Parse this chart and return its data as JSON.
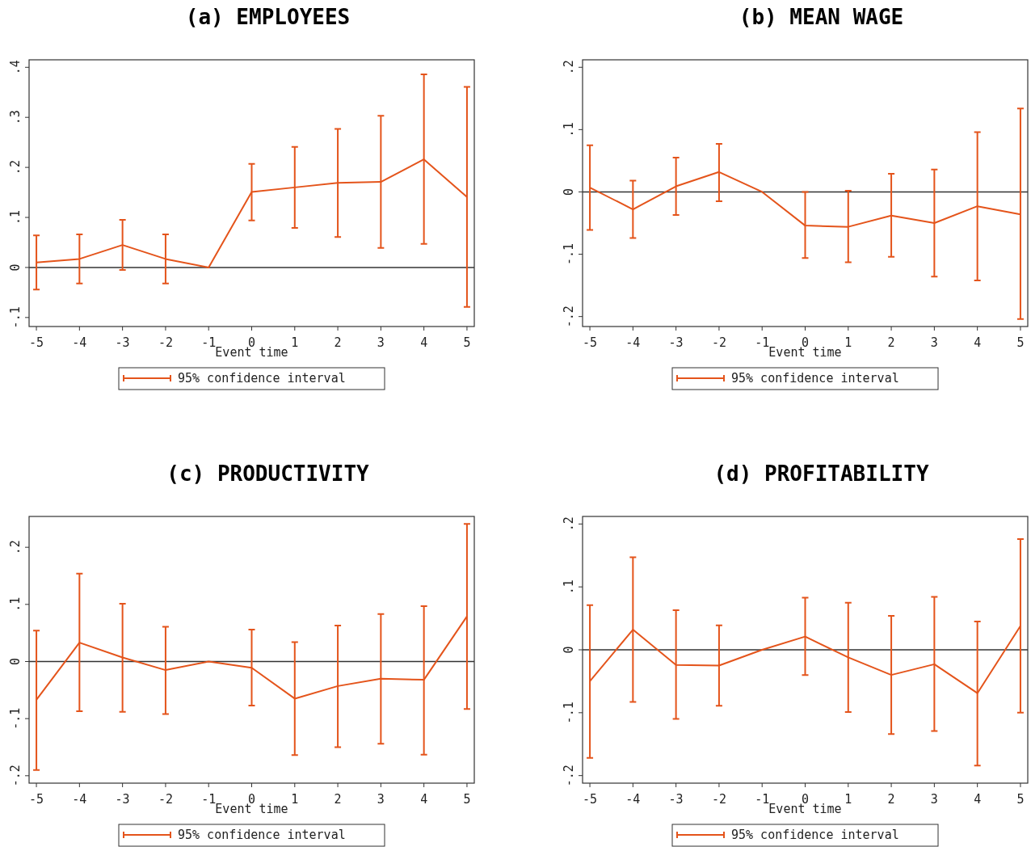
{
  "chart_data": [
    {
      "type": "line",
      "title": "(a) EMPLOYEES",
      "xlabel": "Event time",
      "x": [
        -5,
        -4,
        -3,
        -2,
        -1,
        0,
        1,
        2,
        3,
        4,
        5
      ],
      "xlim": [
        -5.17,
        5.17
      ],
      "xticks": [
        -5,
        -4,
        -3,
        -2,
        -1,
        0,
        1,
        2,
        3,
        4,
        5
      ],
      "ylim": [
        -0.118,
        0.415
      ],
      "yticks": [
        {
          "value": -0.1,
          "label": "-.1"
        },
        {
          "value": 0,
          "label": "0"
        },
        {
          "value": 0.1,
          "label": ".1"
        },
        {
          "value": 0.2,
          "label": ".2"
        },
        {
          "value": 0.3,
          "label": ".3"
        },
        {
          "value": 0.4,
          "label": ".4"
        }
      ],
      "legend": "bottom",
      "ref_lines": [
        {
          "axis": "y",
          "value": 0,
          "color": "#333333"
        }
      ],
      "series": [
        {
          "name": "95% confidence interval",
          "color": "#e4541b",
          "values": [
            0.01,
            0.017,
            0.045,
            0.017,
            0,
            0.151,
            0.16,
            0.169,
            0.171,
            0.216,
            0.141
          ],
          "errors": [
            [
              -0.044,
              0.064
            ],
            [
              -0.032,
              0.066
            ],
            [
              -0.005,
              0.095
            ],
            [
              -0.032,
              0.066
            ],
            null,
            [
              0.094,
              0.207
            ],
            [
              0.079,
              0.241
            ],
            [
              0.061,
              0.277
            ],
            [
              0.039,
              0.303
            ],
            [
              0.047,
              0.386
            ],
            [
              -0.079,
              0.361
            ]
          ]
        }
      ]
    },
    {
      "type": "line",
      "title": "(b) MEAN WAGE",
      "xlabel": "Event time",
      "x": [
        -5,
        -4,
        -3,
        -2,
        -1,
        0,
        1,
        2,
        3,
        4,
        5
      ],
      "xlim": [
        -5.17,
        5.17
      ],
      "xticks": [
        -5,
        -4,
        -3,
        -2,
        -1,
        0,
        1,
        2,
        3,
        4,
        5
      ],
      "ylim": [
        -0.216,
        0.212
      ],
      "yticks": [
        {
          "value": -0.2,
          "label": "-.2"
        },
        {
          "value": -0.1,
          "label": "-.1"
        },
        {
          "value": 0,
          "label": "0"
        },
        {
          "value": 0.1,
          "label": ".1"
        },
        {
          "value": 0.2,
          "label": ".2"
        }
      ],
      "legend": "bottom",
      "ref_lines": [
        {
          "axis": "y",
          "value": 0,
          "color": "#333333"
        }
      ],
      "series": [
        {
          "name": "95% confidence interval",
          "color": "#e4541b",
          "values": [
            0.007,
            -0.028,
            0.009,
            0.032,
            0,
            -0.054,
            -0.056,
            -0.038,
            -0.05,
            -0.023,
            -0.036
          ],
          "errors": [
            [
              -0.061,
              0.075
            ],
            [
              -0.074,
              0.018
            ],
            [
              -0.037,
              0.055
            ],
            [
              -0.015,
              0.077
            ],
            null,
            [
              -0.106,
              0
            ],
            [
              -0.113,
              0.002
            ],
            [
              -0.104,
              0.029
            ],
            [
              -0.136,
              0.036
            ],
            [
              -0.142,
              0.096
            ],
            [
              -0.204,
              0.134
            ]
          ]
        }
      ]
    },
    {
      "type": "line",
      "title": "(c) PRODUCTIVITY",
      "xlabel": "Event time",
      "x": [
        -5,
        -4,
        -3,
        -2,
        -1,
        0,
        1,
        2,
        3,
        4,
        5
      ],
      "xlim": [
        -5.17,
        5.17
      ],
      "xticks": [
        -5,
        -4,
        -3,
        -2,
        -1,
        0,
        1,
        2,
        3,
        4,
        5
      ],
      "ylim": [
        -0.213,
        0.254
      ],
      "yticks": [
        {
          "value": -0.2,
          "label": "-.2"
        },
        {
          "value": -0.1,
          "label": "-.1"
        },
        {
          "value": 0,
          "label": "0"
        },
        {
          "value": 0.1,
          "label": ".1"
        },
        {
          "value": 0.2,
          "label": ".2"
        }
      ],
      "legend": "bottom",
      "ref_lines": [
        {
          "axis": "y",
          "value": 0,
          "color": "#333333"
        }
      ],
      "series": [
        {
          "name": "95% confidence interval",
          "color": "#e4541b",
          "values": [
            -0.067,
            0.033,
            0.007,
            -0.015,
            0,
            -0.011,
            -0.065,
            -0.043,
            -0.03,
            -0.032,
            0.079
          ],
          "errors": [
            [
              -0.19,
              0.054
            ],
            [
              -0.087,
              0.154
            ],
            [
              -0.088,
              0.101
            ],
            [
              -0.092,
              0.061
            ],
            null,
            [
              -0.077,
              0.056
            ],
            [
              -0.164,
              0.034
            ],
            [
              -0.15,
              0.063
            ],
            [
              -0.144,
              0.083
            ],
            [
              -0.163,
              0.097
            ],
            [
              -0.083,
              0.241
            ]
          ]
        }
      ]
    },
    {
      "type": "line",
      "title": "(d) PROFITABILITY",
      "xlabel": "Event time",
      "x": [
        -5,
        -4,
        -3,
        -2,
        -1,
        0,
        1,
        2,
        3,
        4,
        5
      ],
      "xlim": [
        -5.17,
        5.17
      ],
      "xticks": [
        -5,
        -4,
        -3,
        -2,
        -1,
        0,
        1,
        2,
        3,
        4,
        5
      ],
      "ylim": [
        -0.212,
        0.212
      ],
      "yticks": [
        {
          "value": -0.2,
          "label": "-.2"
        },
        {
          "value": -0.1,
          "label": "-.1"
        },
        {
          "value": 0,
          "label": "0"
        },
        {
          "value": 0.1,
          "label": ".1"
        },
        {
          "value": 0.2,
          "label": ".2"
        }
      ],
      "legend": "bottom",
      "ref_lines": [
        {
          "axis": "y",
          "value": 0,
          "color": "#333333"
        }
      ],
      "series": [
        {
          "name": "95% confidence interval",
          "color": "#e4541b",
          "values": [
            -0.05,
            0.032,
            -0.024,
            -0.025,
            0,
            0.021,
            -0.012,
            -0.04,
            -0.023,
            -0.069,
            0.038
          ],
          "errors": [
            [
              -0.172,
              0.071
            ],
            [
              -0.083,
              0.147
            ],
            [
              -0.11,
              0.063
            ],
            [
              -0.089,
              0.039
            ],
            null,
            [
              -0.04,
              0.083
            ],
            [
              -0.099,
              0.075
            ],
            [
              -0.134,
              0.054
            ],
            [
              -0.129,
              0.084
            ],
            [
              -0.184,
              0.045
            ],
            [
              -0.1,
              0.176
            ]
          ]
        }
      ]
    }
  ]
}
